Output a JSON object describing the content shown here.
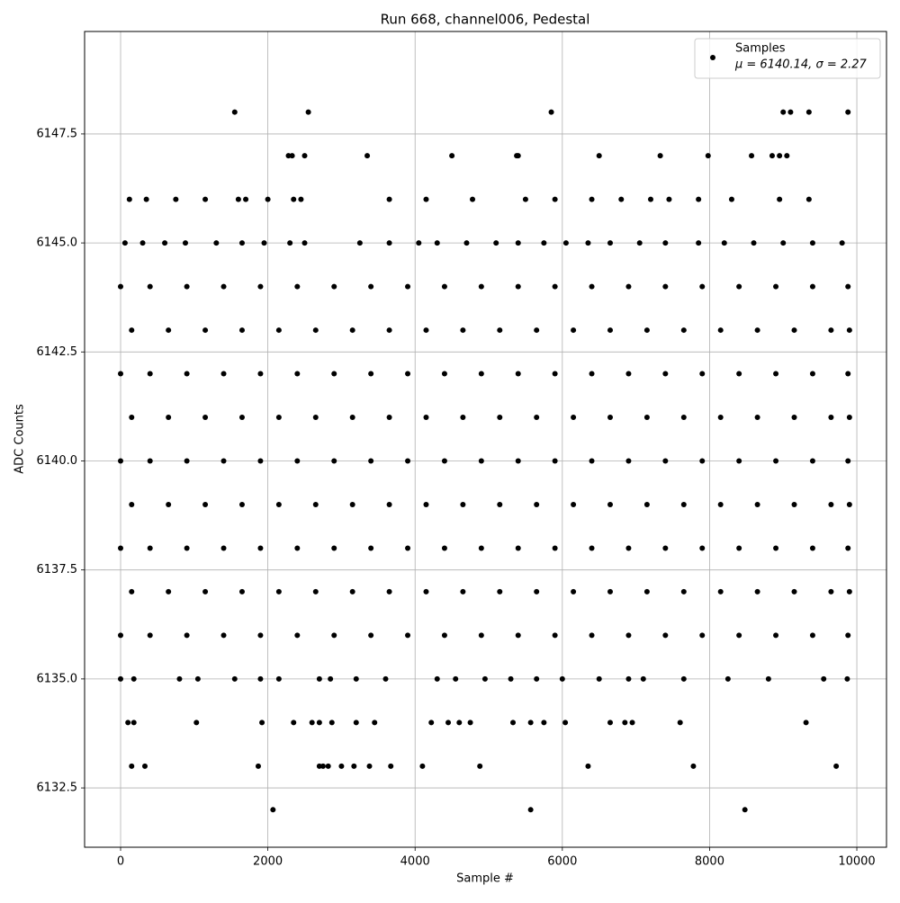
{
  "chart_data": {
    "type": "scatter",
    "title": "Run 668, channel006, Pedestal",
    "x_label": "Sample #",
    "y_label": "ADC Counts",
    "xlim": [
      -489,
      10403
    ],
    "ylim": [
      6131.14,
      6149.85
    ],
    "xticks": [
      0,
      2000,
      4000,
      6000,
      8000,
      10000
    ],
    "yticks": [
      6132.5,
      {
        "value": 6135,
        "label": "6135.0"
      },
      6137.5,
      {
        "value": 6140,
        "label": "6140.0"
      },
      6142.5,
      {
        "value": 6145,
        "label": "6145.0"
      },
      6147.5
    ],
    "grid": true,
    "legend": "upper right",
    "legend_annotation": "μ = 6140.14, σ = 2.27",
    "x": [
      1550,
      2550,
      5850,
      9000,
      9100,
      9350,
      9880,
      2280,
      2330,
      2500,
      3350,
      4500,
      5380,
      5400,
      6500,
      7330,
      7980,
      8570,
      8850,
      8950,
      9050,
      120,
      350,
      750,
      1150,
      1600,
      1700,
      2000,
      2350,
      2450,
      3650,
      4150,
      4780,
      5500,
      5900,
      6400,
      6800,
      7200,
      7450,
      7850,
      8300,
      8950,
      9350,
      60,
      300,
      600,
      880,
      1300,
      1650,
      1950,
      2300,
      2500,
      3250,
      3650,
      4050,
      4300,
      4700,
      5100,
      5400,
      5750,
      6050,
      6350,
      6650,
      7050,
      7400,
      7850,
      8200,
      8600,
      9000,
      9400,
      9800,
      0,
      400,
      900,
      1400,
      1900,
      2400,
      2900,
      3400,
      3900,
      4400,
      4900,
      5400,
      5900,
      6400,
      6900,
      7400,
      7900,
      8400,
      8900,
      9400,
      9880,
      150,
      650,
      1150,
      1650,
      2150,
      2650,
      3150,
      3650,
      4150,
      4650,
      5150,
      5650,
      6150,
      6650,
      7150,
      7650,
      8150,
      8650,
      9150,
      9650,
      9900,
      0,
      400,
      900,
      1400,
      1900,
      2400,
      2900,
      3400,
      3900,
      4400,
      4900,
      5400,
      5900,
      6400,
      6900,
      7400,
      7900,
      8400,
      8900,
      9400,
      9880,
      150,
      650,
      1150,
      1650,
      2150,
      2650,
      3150,
      3650,
      4150,
      4650,
      5150,
      5650,
      6150,
      6650,
      7150,
      7650,
      8150,
      8650,
      9150,
      9650,
      9900,
      0,
      400,
      900,
      1400,
      1900,
      2400,
      2900,
      3400,
      3900,
      4400,
      4900,
      5400,
      5900,
      6400,
      6900,
      7400,
      7900,
      8400,
      8900,
      9400,
      9880,
      150,
      650,
      1150,
      1650,
      2150,
      2650,
      3150,
      3650,
      4150,
      4650,
      5150,
      5650,
      6150,
      6650,
      7150,
      7650,
      8150,
      8650,
      9150,
      9650,
      9900,
      0,
      400,
      900,
      1400,
      1900,
      2400,
      2900,
      3400,
      3900,
      4400,
      4900,
      5400,
      5900,
      6400,
      6900,
      7400,
      7900,
      8400,
      8900,
      9400,
      9880,
      150,
      650,
      1150,
      1650,
      2150,
      2650,
      3150,
      3650,
      4150,
      4650,
      5150,
      5650,
      6150,
      6650,
      7150,
      7650,
      8150,
      8650,
      9150,
      9650,
      9900,
      0,
      400,
      900,
      1400,
      1900,
      2400,
      2900,
      3400,
      3900,
      4400,
      4900,
      5400,
      5900,
      6400,
      6900,
      7400,
      7900,
      8400,
      8900,
      9400,
      9880,
      0,
      180,
      800,
      1050,
      1550,
      1900,
      2150,
      2700,
      2850,
      3200,
      3600,
      4300,
      4550,
      4950,
      5300,
      5650,
      6000,
      6500,
      6900,
      7100,
      7650,
      8250,
      8800,
      9550,
      9870,
      100,
      180,
      1030,
      1920,
      2350,
      2600,
      2700,
      2870,
      3200,
      3450,
      4220,
      4450,
      4600,
      4750,
      5330,
      5570,
      5750,
      6040,
      6650,
      6850,
      6950,
      7600,
      9310,
      150,
      330,
      1870,
      2700,
      2750,
      2820,
      3000,
      3170,
      3380,
      3670,
      4100,
      4880,
      6350,
      7780,
      9720,
      2070,
      5570,
      8480
    ],
    "series": [
      {
        "name": "Samples",
        "color": "#000000",
        "values": [
          6148,
          6148,
          6148,
          6148,
          6148,
          6148,
          6148,
          6147,
          6147,
          6147,
          6147,
          6147,
          6147,
          6147,
          6147,
          6147,
          6147,
          6147,
          6147,
          6147,
          6147,
          6146,
          6146,
          6146,
          6146,
          6146,
          6146,
          6146,
          6146,
          6146,
          6146,
          6146,
          6146,
          6146,
          6146,
          6146,
          6146,
          6146,
          6146,
          6146,
          6146,
          6146,
          6146,
          6145,
          6145,
          6145,
          6145,
          6145,
          6145,
          6145,
          6145,
          6145,
          6145,
          6145,
          6145,
          6145,
          6145,
          6145,
          6145,
          6145,
          6145,
          6145,
          6145,
          6145,
          6145,
          6145,
          6145,
          6145,
          6145,
          6145,
          6145,
          6144,
          6144,
          6144,
          6144,
          6144,
          6144,
          6144,
          6144,
          6144,
          6144,
          6144,
          6144,
          6144,
          6144,
          6144,
          6144,
          6144,
          6144,
          6144,
          6144,
          6144,
          6143,
          6143,
          6143,
          6143,
          6143,
          6143,
          6143,
          6143,
          6143,
          6143,
          6143,
          6143,
          6143,
          6143,
          6143,
          6143,
          6143,
          6143,
          6143,
          6143,
          6143,
          6142,
          6142,
          6142,
          6142,
          6142,
          6142,
          6142,
          6142,
          6142,
          6142,
          6142,
          6142,
          6142,
          6142,
          6142,
          6142,
          6142,
          6142,
          6142,
          6142,
          6142,
          6141,
          6141,
          6141,
          6141,
          6141,
          6141,
          6141,
          6141,
          6141,
          6141,
          6141,
          6141,
          6141,
          6141,
          6141,
          6141,
          6141,
          6141,
          6141,
          6141,
          6141,
          6140,
          6140,
          6140,
          6140,
          6140,
          6140,
          6140,
          6140,
          6140,
          6140,
          6140,
          6140,
          6140,
          6140,
          6140,
          6140,
          6140,
          6140,
          6140,
          6140,
          6140,
          6139,
          6139,
          6139,
          6139,
          6139,
          6139,
          6139,
          6139,
          6139,
          6139,
          6139,
          6139,
          6139,
          6139,
          6139,
          6139,
          6139,
          6139,
          6139,
          6139,
          6139,
          6138,
          6138,
          6138,
          6138,
          6138,
          6138,
          6138,
          6138,
          6138,
          6138,
          6138,
          6138,
          6138,
          6138,
          6138,
          6138,
          6138,
          6138,
          6138,
          6138,
          6138,
          6137,
          6137,
          6137,
          6137,
          6137,
          6137,
          6137,
          6137,
          6137,
          6137,
          6137,
          6137,
          6137,
          6137,
          6137,
          6137,
          6137,
          6137,
          6137,
          6137,
          6137,
          6136,
          6136,
          6136,
          6136,
          6136,
          6136,
          6136,
          6136,
          6136,
          6136,
          6136,
          6136,
          6136,
          6136,
          6136,
          6136,
          6136,
          6136,
          6136,
          6136,
          6136,
          6135,
          6135,
          6135,
          6135,
          6135,
          6135,
          6135,
          6135,
          6135,
          6135,
          6135,
          6135,
          6135,
          6135,
          6135,
          6135,
          6135,
          6135,
          6135,
          6135,
          6135,
          6135,
          6135,
          6135,
          6135,
          6134,
          6134,
          6134,
          6134,
          6134,
          6134,
          6134,
          6134,
          6134,
          6134,
          6134,
          6134,
          6134,
          6134,
          6134,
          6134,
          6134,
          6134,
          6134,
          6134,
          6134,
          6134,
          6134,
          6133,
          6133,
          6133,
          6133,
          6133,
          6133,
          6133,
          6133,
          6133,
          6133,
          6133,
          6133,
          6133,
          6133,
          6133,
          6132,
          6132,
          6132
        ]
      }
    ]
  }
}
